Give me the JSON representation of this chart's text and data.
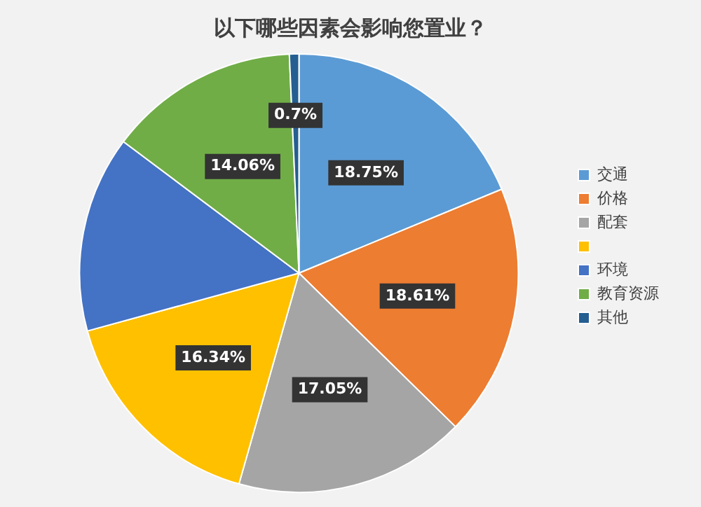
{
  "chart_data": {
    "type": "pie",
    "title": "以下哪些因素会影响您置业？",
    "categories": [
      "交通",
      "价格",
      "配套",
      null,
      "环境",
      "教育资源",
      "其他"
    ],
    "values": [
      18.75,
      18.61,
      17.05,
      16.34,
      14.49,
      14.06,
      0.7
    ],
    "colors": [
      "#5b9bd5",
      "#ed7d31",
      "#a5a5a5",
      "#ffc000",
      "#4472c4",
      "#70ad47",
      "#255e91"
    ],
    "value_labels": [
      "18.75%",
      "18.61%",
      "17.05%",
      "16.34%",
      null,
      "14.06%",
      "0.7%"
    ],
    "legend": "right"
  }
}
